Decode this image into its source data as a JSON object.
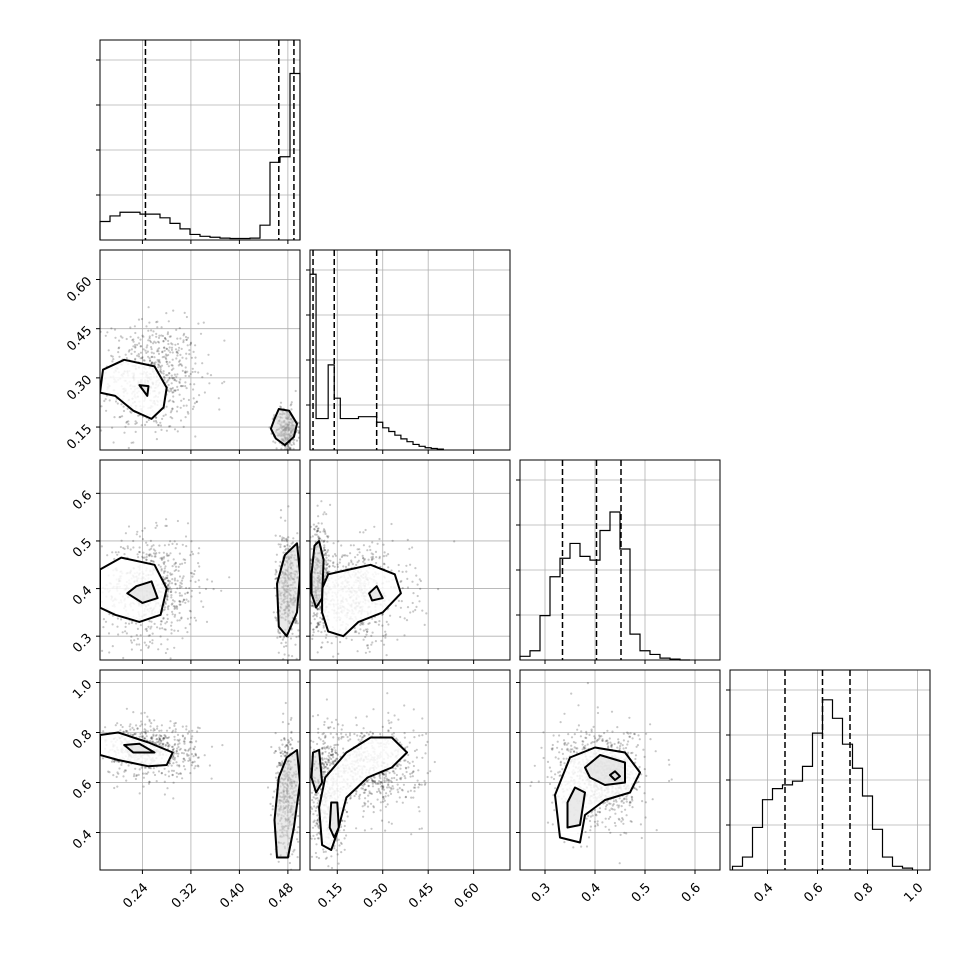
{
  "chart_data": {
    "type": "scatter",
    "layout": "corner-plot",
    "grid": true,
    "n_params": 4,
    "diagonal": [
      {
        "index": 0,
        "xlim": [
          0.17,
          0.5
        ],
        "quantiles": [
          0.245,
          0.465,
          0.49
        ],
        "hist": {
          "edges": [
            0.17,
            0.1865,
            0.203,
            0.2195,
            0.236,
            0.2525,
            0.269,
            0.2855,
            0.302,
            0.3185,
            0.335,
            0.3515,
            0.368,
            0.3845,
            0.401,
            0.4175,
            0.434,
            0.4505,
            0.467,
            0.4835,
            0.5
          ],
          "counts": [
            0.1,
            0.13,
            0.15,
            0.15,
            0.14,
            0.14,
            0.12,
            0.09,
            0.06,
            0.03,
            0.02,
            0.015,
            0.01,
            0.008,
            0.008,
            0.01,
            0.08,
            0.42,
            0.45,
            0.9
          ]
        }
      },
      {
        "index": 1,
        "xlim": [
          0.06,
          0.72
        ],
        "quantiles": [
          0.07,
          0.14,
          0.28
        ],
        "hist": {
          "edges": [
            0.06,
            0.08,
            0.1,
            0.12,
            0.14,
            0.16,
            0.18,
            0.2,
            0.22,
            0.24,
            0.26,
            0.28,
            0.3,
            0.32,
            0.34,
            0.36,
            0.38,
            0.4,
            0.42,
            0.44,
            0.46,
            0.48,
            0.5
          ],
          "counts": [
            0.95,
            0.17,
            0.17,
            0.46,
            0.28,
            0.17,
            0.17,
            0.17,
            0.18,
            0.18,
            0.18,
            0.15,
            0.12,
            0.1,
            0.08,
            0.06,
            0.045,
            0.03,
            0.02,
            0.012,
            0.008,
            0.005
          ]
        }
      },
      {
        "index": 2,
        "xlim": [
          0.25,
          0.65
        ],
        "quantiles": [
          0.335,
          0.403,
          0.452
        ],
        "hist": {
          "edges": [
            0.25,
            0.27,
            0.29,
            0.31,
            0.33,
            0.35,
            0.37,
            0.39,
            0.41,
            0.43,
            0.45,
            0.47,
            0.49,
            0.51,
            0.53,
            0.55,
            0.57,
            0.59
          ],
          "counts": [
            0.02,
            0.05,
            0.24,
            0.45,
            0.55,
            0.63,
            0.56,
            0.54,
            0.7,
            0.8,
            0.6,
            0.14,
            0.05,
            0.03,
            0.01,
            0.005,
            0.0
          ]
        }
      },
      {
        "index": 3,
        "xlim": [
          0.25,
          1.05
        ],
        "quantiles": [
          0.47,
          0.62,
          0.73
        ],
        "hist": {
          "edges": [
            0.26,
            0.3,
            0.34,
            0.38,
            0.42,
            0.46,
            0.5,
            0.54,
            0.58,
            0.62,
            0.66,
            0.7,
            0.74,
            0.78,
            0.82,
            0.86,
            0.9,
            0.94,
            0.98
          ],
          "counts": [
            0.02,
            0.07,
            0.23,
            0.38,
            0.44,
            0.46,
            0.48,
            0.56,
            0.74,
            0.92,
            0.82,
            0.68,
            0.55,
            0.4,
            0.22,
            0.07,
            0.02,
            0.01
          ]
        }
      }
    ],
    "offdiag": [
      {
        "row": 1,
        "col": 0,
        "clouds": [
          {
            "cx": 0.255,
            "cy": 0.3,
            "sx": 0.04,
            "sy": 0.085,
            "n": 700
          },
          {
            "cx": 0.478,
            "cy": 0.14,
            "sx": 0.009,
            "sy": 0.035,
            "n": 320
          }
        ],
        "contours": [
          [
            [
              0.175,
              0.325
            ],
            [
              0.21,
              0.355
            ],
            [
              0.26,
              0.335
            ],
            [
              0.28,
              0.27
            ],
            [
              0.275,
              0.21
            ],
            [
              0.255,
              0.175
            ],
            [
              0.225,
              0.2
            ],
            [
              0.195,
              0.245
            ],
            [
              0.17,
              0.255
            ]
          ],
          [
            [
              0.235,
              0.278
            ],
            [
              0.25,
              0.275
            ],
            [
              0.248,
              0.245
            ],
            [
              0.235,
              0.278
            ]
          ],
          [
            [
              0.458,
              0.175
            ],
            [
              0.465,
              0.205
            ],
            [
              0.482,
              0.2
            ],
            [
              0.495,
              0.16
            ],
            [
              0.49,
              0.12
            ],
            [
              0.475,
              0.095
            ],
            [
              0.46,
              0.115
            ],
            [
              0.452,
              0.145
            ]
          ]
        ]
      },
      {
        "row": 2,
        "col": 0,
        "clouds": [
          {
            "cx": 0.255,
            "cy": 0.4,
            "sx": 0.04,
            "sy": 0.055,
            "n": 700
          },
          {
            "cx": 0.48,
            "cy": 0.4,
            "sx": 0.01,
            "sy": 0.06,
            "n": 420
          }
        ],
        "contours": [
          [
            [
              0.17,
              0.44
            ],
            [
              0.205,
              0.465
            ],
            [
              0.26,
              0.45
            ],
            [
              0.28,
              0.4
            ],
            [
              0.27,
              0.345
            ],
            [
              0.235,
              0.33
            ],
            [
              0.195,
              0.345
            ],
            [
              0.17,
              0.36
            ]
          ],
          [
            [
              0.215,
              0.39
            ],
            [
              0.23,
              0.405
            ],
            [
              0.255,
              0.415
            ],
            [
              0.265,
              0.38
            ],
            [
              0.24,
              0.37
            ],
            [
              0.215,
              0.39
            ]
          ],
          [
            [
              0.465,
              0.32
            ],
            [
              0.462,
              0.41
            ],
            [
              0.475,
              0.47
            ],
            [
              0.495,
              0.495
            ],
            [
              0.5,
              0.43
            ],
            [
              0.495,
              0.35
            ],
            [
              0.478,
              0.3
            ]
          ]
        ]
      },
      {
        "row": 2,
        "col": 1,
        "clouds": [
          {
            "cx": 0.21,
            "cy": 0.39,
            "sx": 0.09,
            "sy": 0.05,
            "n": 700
          },
          {
            "cx": 0.09,
            "cy": 0.42,
            "sx": 0.02,
            "sy": 0.055,
            "n": 380
          }
        ],
        "contours": [
          [
            [
              0.1,
              0.4
            ],
            [
              0.12,
              0.43
            ],
            [
              0.19,
              0.44
            ],
            [
              0.26,
              0.45
            ],
            [
              0.34,
              0.43
            ],
            [
              0.36,
              0.39
            ],
            [
              0.3,
              0.35
            ],
            [
              0.22,
              0.33
            ],
            [
              0.17,
              0.3
            ],
            [
              0.12,
              0.31
            ],
            [
              0.1,
              0.35
            ]
          ],
          [
            [
              0.255,
              0.39
            ],
            [
              0.28,
              0.405
            ],
            [
              0.3,
              0.38
            ],
            [
              0.265,
              0.375
            ]
          ],
          [
            [
              0.065,
              0.43
            ],
            [
              0.075,
              0.49
            ],
            [
              0.09,
              0.5
            ],
            [
              0.105,
              0.46
            ],
            [
              0.1,
              0.38
            ],
            [
              0.08,
              0.36
            ],
            [
              0.065,
              0.39
            ]
          ]
        ]
      },
      {
        "row": 3,
        "col": 0,
        "clouds": [
          {
            "cx": 0.25,
            "cy": 0.73,
            "sx": 0.04,
            "sy": 0.055,
            "n": 650
          },
          {
            "cx": 0.478,
            "cy": 0.55,
            "sx": 0.01,
            "sy": 0.12,
            "n": 450
          }
        ],
        "contours": [
          [
            [
              0.17,
              0.79
            ],
            [
              0.2,
              0.8
            ],
            [
              0.25,
              0.76
            ],
            [
              0.29,
              0.72
            ],
            [
              0.28,
              0.67
            ],
            [
              0.25,
              0.665
            ],
            [
              0.2,
              0.69
            ],
            [
              0.17,
              0.71
            ]
          ],
          [
            [
              0.21,
              0.75
            ],
            [
              0.235,
              0.755
            ],
            [
              0.26,
              0.72
            ],
            [
              0.225,
              0.72
            ]
          ],
          [
            [
              0.462,
              0.3
            ],
            [
              0.458,
              0.45
            ],
            [
              0.465,
              0.62
            ],
            [
              0.478,
              0.7
            ],
            [
              0.495,
              0.73
            ],
            [
              0.5,
              0.6
            ],
            [
              0.49,
              0.42
            ],
            [
              0.48,
              0.3
            ]
          ]
        ]
      },
      {
        "row": 3,
        "col": 1,
        "clouds": [
          {
            "cx": 0.25,
            "cy": 0.66,
            "sx": 0.09,
            "sy": 0.09,
            "n": 720
          },
          {
            "cx": 0.11,
            "cy": 0.55,
            "sx": 0.03,
            "sy": 0.13,
            "n": 420
          }
        ],
        "contours": [
          [
            [
              0.1,
              0.35
            ],
            [
              0.09,
              0.5
            ],
            [
              0.11,
              0.62
            ],
            [
              0.18,
              0.72
            ],
            [
              0.26,
              0.78
            ],
            [
              0.33,
              0.78
            ],
            [
              0.38,
              0.72
            ],
            [
              0.33,
              0.66
            ],
            [
              0.25,
              0.62
            ],
            [
              0.18,
              0.54
            ],
            [
              0.15,
              0.4
            ],
            [
              0.13,
              0.33
            ]
          ],
          [
            [
              0.065,
              0.62
            ],
            [
              0.07,
              0.72
            ],
            [
              0.09,
              0.73
            ],
            [
              0.1,
              0.6
            ],
            [
              0.08,
              0.56
            ]
          ],
          [
            [
              0.125,
              0.42
            ],
            [
              0.13,
              0.52
            ],
            [
              0.15,
              0.52
            ],
            [
              0.155,
              0.42
            ],
            [
              0.14,
              0.38
            ]
          ]
        ]
      },
      {
        "row": 3,
        "col": 2,
        "clouds": [
          {
            "cx": 0.405,
            "cy": 0.62,
            "sx": 0.045,
            "sy": 0.1,
            "n": 900
          },
          {
            "cx": 0.44,
            "cy": 0.64,
            "sx": 0.02,
            "sy": 0.04,
            "n": 250
          }
        ],
        "contours": [
          [
            [
              0.33,
              0.38
            ],
            [
              0.32,
              0.55
            ],
            [
              0.35,
              0.7
            ],
            [
              0.4,
              0.74
            ],
            [
              0.46,
              0.72
            ],
            [
              0.49,
              0.64
            ],
            [
              0.47,
              0.56
            ],
            [
              0.42,
              0.53
            ],
            [
              0.38,
              0.47
            ],
            [
              0.37,
              0.36
            ]
          ],
          [
            [
              0.345,
              0.42
            ],
            [
              0.345,
              0.52
            ],
            [
              0.36,
              0.58
            ],
            [
              0.38,
              0.56
            ],
            [
              0.37,
              0.43
            ]
          ],
          [
            [
              0.38,
              0.66
            ],
            [
              0.41,
              0.71
            ],
            [
              0.46,
              0.68
            ],
            [
              0.46,
              0.6
            ],
            [
              0.42,
              0.59
            ],
            [
              0.39,
              0.62
            ]
          ],
          [
            [
              0.43,
              0.63
            ],
            [
              0.44,
              0.645
            ],
            [
              0.45,
              0.625
            ],
            [
              0.44,
              0.61
            ]
          ]
        ]
      }
    ],
    "axes": {
      "bottom_row_ticks": [
        {
          "col": 0,
          "values": [
            0.24,
            0.32,
            0.4,
            0.48
          ],
          "labels": [
            "0.24",
            "0.32",
            "0.40",
            "0.48"
          ]
        },
        {
          "col": 1,
          "values": [
            0.15,
            0.3,
            0.45,
            0.6
          ],
          "labels": [
            "0.15",
            "0.30",
            "0.45",
            "0.60"
          ]
        },
        {
          "col": 2,
          "values": [
            0.3,
            0.4,
            0.5,
            0.6
          ],
          "labels": [
            "0.3",
            "0.4",
            "0.5",
            "0.6"
          ]
        },
        {
          "col": 3,
          "values": [
            0.4,
            0.6,
            0.8,
            1.0
          ],
          "labels": [
            "0.4",
            "0.6",
            "0.8",
            "1.0"
          ]
        }
      ],
      "left_col_ticks": [
        {
          "row": 1,
          "ylim": [
            0.08,
            0.69
          ],
          "values": [
            0.15,
            0.3,
            0.45,
            0.6
          ],
          "labels": [
            "0.15",
            "0.30",
            "0.45",
            "0.60"
          ]
        },
        {
          "row": 2,
          "ylim": [
            0.25,
            0.67
          ],
          "values": [
            0.3,
            0.4,
            0.5,
            0.6
          ],
          "labels": [
            "0.3",
            "0.4",
            "0.5",
            "0.6"
          ]
        },
        {
          "row": 3,
          "ylim": [
            0.25,
            1.05
          ],
          "values": [
            0.4,
            0.6,
            0.8,
            1.0
          ],
          "labels": [
            "0.4",
            "0.6",
            "0.8",
            "1.0"
          ]
        }
      ]
    }
  }
}
